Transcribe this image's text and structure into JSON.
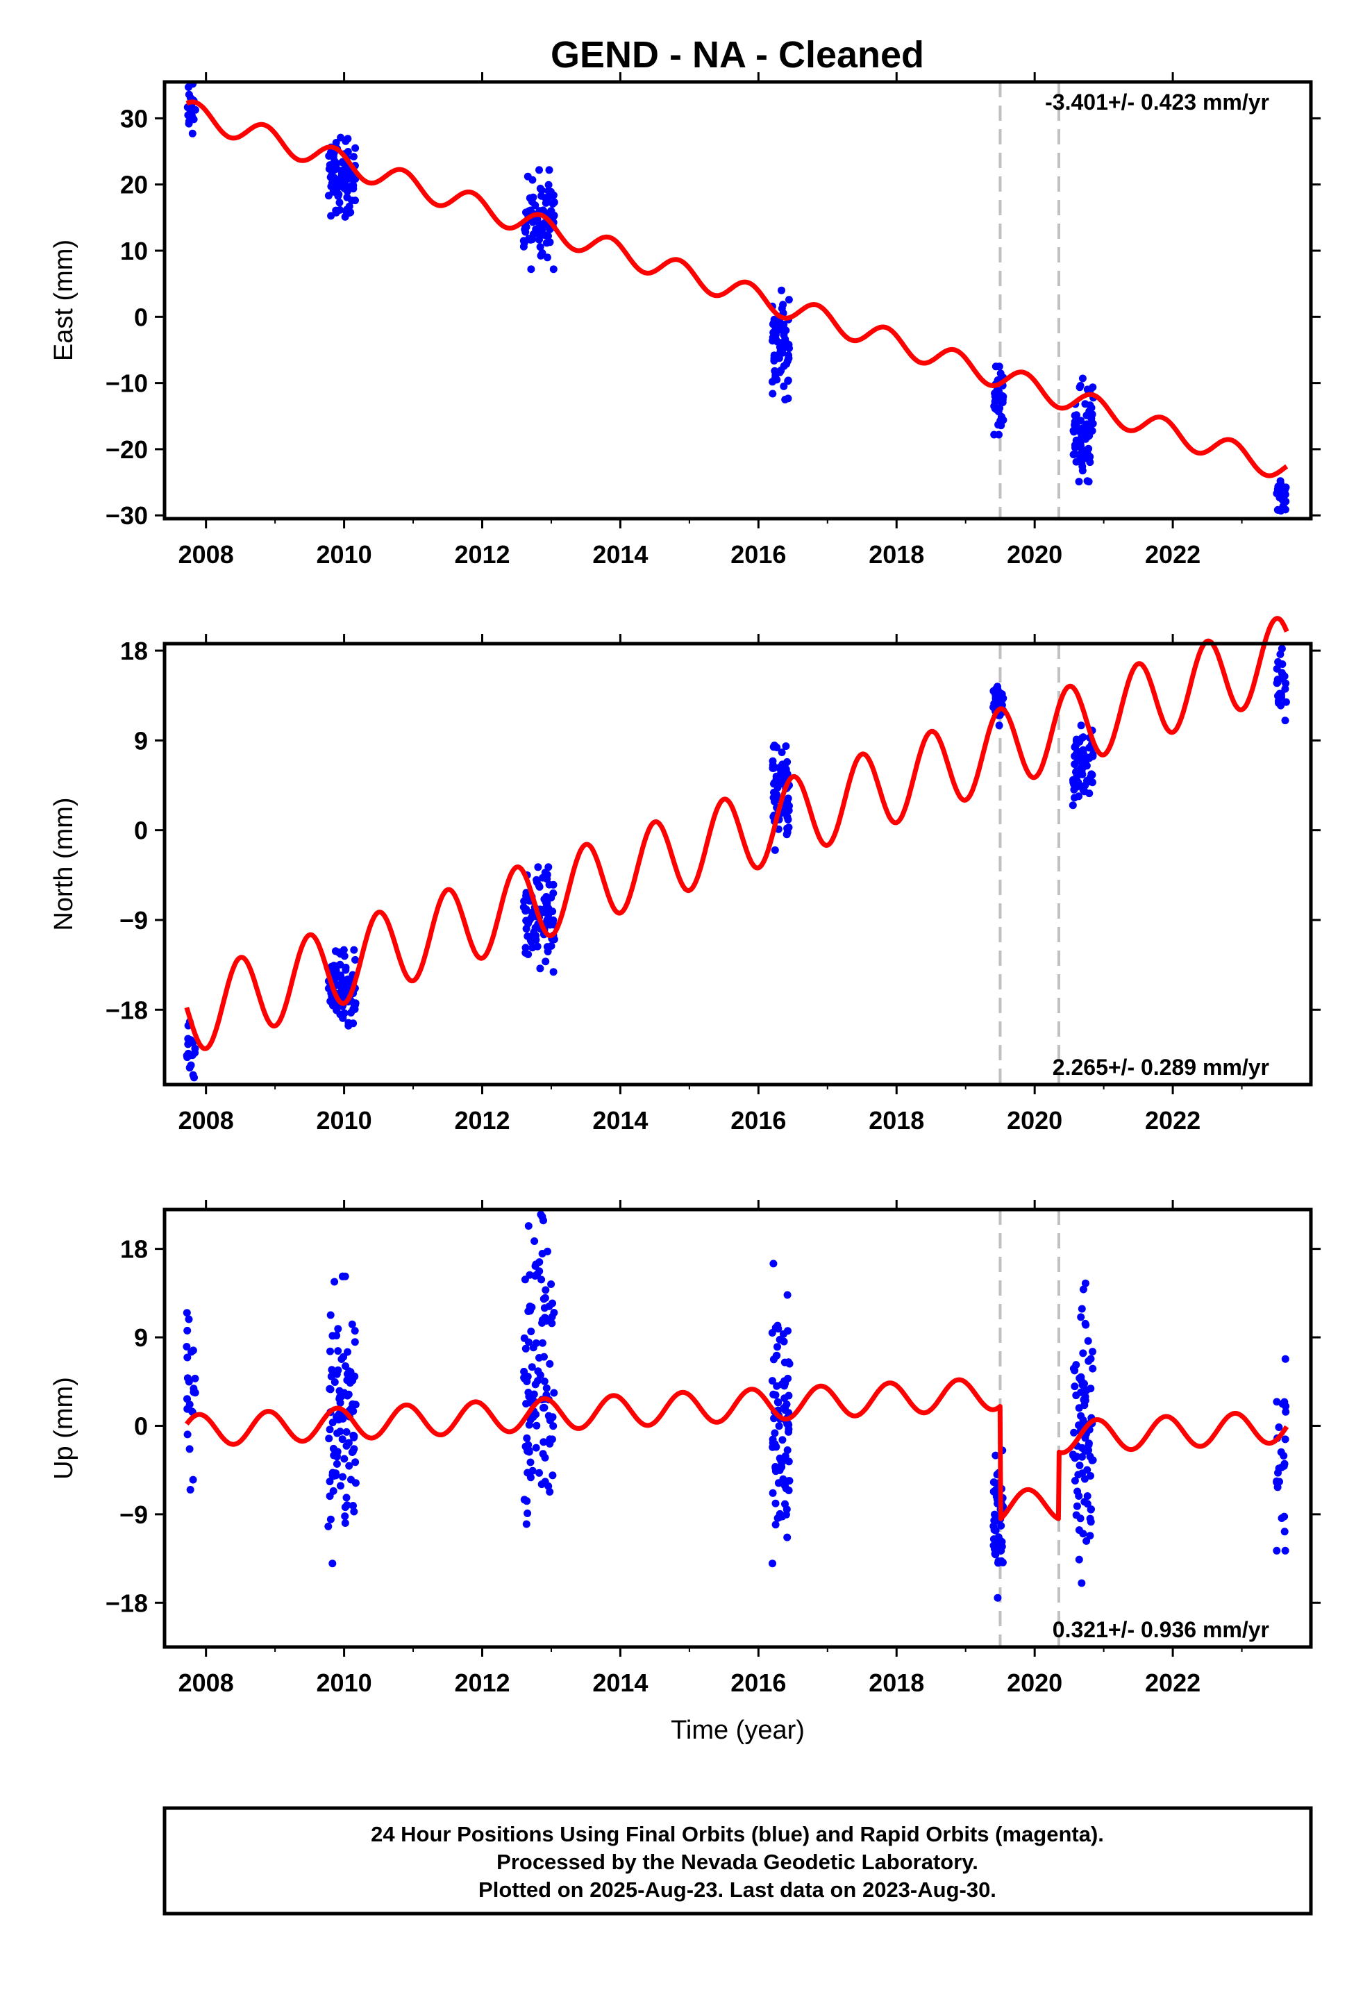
{
  "title": "GEND  - NA - Cleaned",
  "footer": {
    "line1": "24 Hour Positions Using Final Orbits (blue) and Rapid Orbits (magenta).",
    "line2": "Processed by the Nevada Geodetic Laboratory.",
    "line3": "Plotted on 2025-Aug-23. Last data on 2023-Aug-30."
  },
  "colors": {
    "data": "#0000ff",
    "model": "#ff0000",
    "break": "#c0c0c0",
    "frame": "#000000"
  },
  "chart_data": [
    {
      "type": "scatter",
      "name": "east",
      "ylabel": "East (mm)",
      "xlabel": "",
      "xlim": [
        2007.4,
        2024.0
      ],
      "ylim": [
        -30.5,
        35.5
      ],
      "xticks": [
        "2008",
        "2010",
        "2012",
        "2014",
        "2016",
        "2018",
        "2020",
        "2022"
      ],
      "yticks": [
        "30",
        "20",
        "10",
        "0",
        "−10",
        "−20",
        "−30"
      ],
      "ytick_values": [
        30,
        20,
        10,
        0,
        -10,
        -20,
        -30
      ],
      "rate_text": "-3.401+/- 0.423 mm/yr",
      "rate_position": "top-right",
      "breaks": [
        2019.5,
        2020.35
      ],
      "model": {
        "offset": 31.0,
        "slope": -3.401,
        "amp": 1.8,
        "phase": 0.6,
        "steps": []
      },
      "data_clusters": [
        {
          "x": [
            2007.72,
            2007.85
          ],
          "y": [
            27.7,
            35.2
          ],
          "n": 18
        },
        {
          "x": [
            2009.77,
            2010.17
          ],
          "y": [
            15.1,
            27.1
          ],
          "n": 90
        },
        {
          "x": [
            2012.6,
            2013.05
          ],
          "y": [
            7.2,
            22.2
          ],
          "n": 85
        },
        {
          "x": [
            2016.2,
            2016.45
          ],
          "y": [
            -12.5,
            4.0
          ],
          "n": 70
        },
        {
          "x": [
            2019.4,
            2019.55
          ],
          "y": [
            -17.8,
            -7.5
          ],
          "n": 40
        },
        {
          "x": [
            2020.55,
            2020.85
          ],
          "y": [
            -24.9,
            -9.3
          ],
          "n": 75
        },
        {
          "x": [
            2023.5,
            2023.65
          ],
          "y": [
            -29.3,
            -24.8
          ],
          "n": 25
        }
      ]
    },
    {
      "type": "scatter",
      "name": "north",
      "ylabel": "North (mm)",
      "xlabel": "",
      "xlim": [
        2007.4,
        2024.0
      ],
      "ylim": [
        -25.5,
        18.7
      ],
      "xticks": [
        "2008",
        "2010",
        "2012",
        "2014",
        "2016",
        "2018",
        "2020",
        "2022"
      ],
      "yticks": [
        "18",
        "9",
        "0",
        "−9",
        "−18"
      ],
      "ytick_values": [
        18,
        9,
        0,
        -9,
        -18
      ],
      "rate_text": "2.265+/- 0.289 mm/yr",
      "rate_position": "bottom-right",
      "breaks": [
        2019.5,
        2020.35
      ],
      "model": {
        "offset": -18.5,
        "slope": 2.265,
        "amp": 4.0,
        "phase": 0.25,
        "steps": []
      },
      "data_clusters": [
        {
          "x": [
            2007.72,
            2007.85
          ],
          "y": [
            -24.8,
            -19.2
          ],
          "n": 18
        },
        {
          "x": [
            2009.77,
            2010.17
          ],
          "y": [
            -19.6,
            -12.0
          ],
          "n": 90
        },
        {
          "x": [
            2012.6,
            2013.05
          ],
          "y": [
            -14.2,
            -3.7
          ],
          "n": 85
        },
        {
          "x": [
            2016.2,
            2016.45
          ],
          "y": [
            -2.0,
            8.5
          ],
          "n": 70
        },
        {
          "x": [
            2019.4,
            2019.55
          ],
          "y": [
            10.5,
            14.4
          ],
          "n": 40
        },
        {
          "x": [
            2020.55,
            2020.85
          ],
          "y": [
            2.5,
            10.5
          ],
          "n": 75
        },
        {
          "x": [
            2023.5,
            2023.65
          ],
          "y": [
            11.0,
            18.2
          ],
          "n": 25
        }
      ]
    },
    {
      "type": "scatter",
      "name": "up",
      "ylabel": "Up (mm)",
      "xlabel": "Time (year)",
      "xlim": [
        2007.4,
        2024.0
      ],
      "ylim": [
        -22.5,
        22.0
      ],
      "xticks": [
        "2008",
        "2010",
        "2012",
        "2014",
        "2016",
        "2018",
        "2020",
        "2022"
      ],
      "yticks": [
        "18",
        "9",
        "0",
        "−9",
        "−18"
      ],
      "ytick_values": [
        18,
        9,
        0,
        -9,
        -18
      ],
      "rate_text": "0.321+/- 0.936 mm/yr",
      "rate_position": "bottom-right",
      "breaks": [
        2019.5,
        2020.35
      ],
      "model": {
        "offset": -0.5,
        "slope": 0.321,
        "amp": 1.6,
        "phase": 0.65,
        "steps": [
          {
            "x": 2019.5,
            "dy": -11.5
          },
          {
            "x": 2020.35,
            "dy": 6.8
          }
        ]
      },
      "data_clusters": [
        {
          "x": [
            2007.72,
            2007.85
          ],
          "y": [
            -6.5,
            11.5
          ],
          "n": 22
        },
        {
          "x": [
            2009.77,
            2010.17
          ],
          "y": [
            -14.0,
            15.2
          ],
          "n": 100
        },
        {
          "x": [
            2012.6,
            2013.05
          ],
          "y": [
            -10.0,
            21.5
          ],
          "n": 110
        },
        {
          "x": [
            2016.2,
            2016.45
          ],
          "y": [
            -14.0,
            16.5
          ],
          "n": 90
        },
        {
          "x": [
            2019.4,
            2019.55
          ],
          "y": [
            -17.5,
            -2.5
          ],
          "n": 45
        },
        {
          "x": [
            2020.55,
            2020.85
          ],
          "y": [
            -16.0,
            14.5
          ],
          "n": 85
        },
        {
          "x": [
            2023.5,
            2023.65
          ],
          "y": [
            -12.7,
            6.8
          ],
          "n": 25
        }
      ]
    }
  ]
}
